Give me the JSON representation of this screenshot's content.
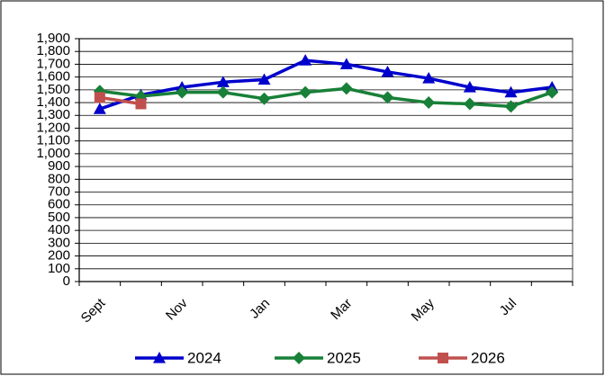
{
  "chart_data": {
    "type": "line",
    "categories": [
      "Sept",
      null,
      "Nov",
      null,
      "Jan",
      null,
      "Mar",
      null,
      "May",
      null,
      "Jul",
      null
    ],
    "series": [
      {
        "name": "2024",
        "color": "#0000cc",
        "marker": "triangle",
        "values": [
          1350,
          1460,
          1520,
          1560,
          1580,
          1730,
          1700,
          1640,
          1590,
          1520,
          1480,
          1520
        ]
      },
      {
        "name": "2025",
        "color": "#188038",
        "marker": "diamond",
        "values": [
          1490,
          1450,
          1480,
          1480,
          1430,
          1480,
          1510,
          1440,
          1400,
          1390,
          1370,
          1480
        ]
      },
      {
        "name": "2026",
        "color": "#c0504d",
        "marker": "square",
        "values": [
          1440,
          1390,
          null,
          null,
          null,
          null,
          null,
          null,
          null,
          null,
          null,
          null
        ]
      }
    ],
    "ylim": [
      0,
      1900
    ],
    "yticks": [
      0,
      100,
      200,
      300,
      400,
      500,
      600,
      700,
      800,
      900,
      {
        "value": 1000,
        "label": "1,000"
      },
      {
        "value": 1100,
        "label": "1,100"
      },
      {
        "value": 1200,
        "label": "1,200"
      },
      {
        "value": 1300,
        "label": "1,300"
      },
      {
        "value": 1400,
        "label": "1,400"
      },
      {
        "value": 1500,
        "label": "1,500"
      },
      {
        "value": 1600,
        "label": "1,600"
      },
      {
        "value": 1700,
        "label": "1,700"
      },
      {
        "value": 1800,
        "label": "1,800"
      },
      {
        "value": 1900,
        "label": "1,900"
      }
    ],
    "grid": true,
    "legend": "bottom"
  }
}
